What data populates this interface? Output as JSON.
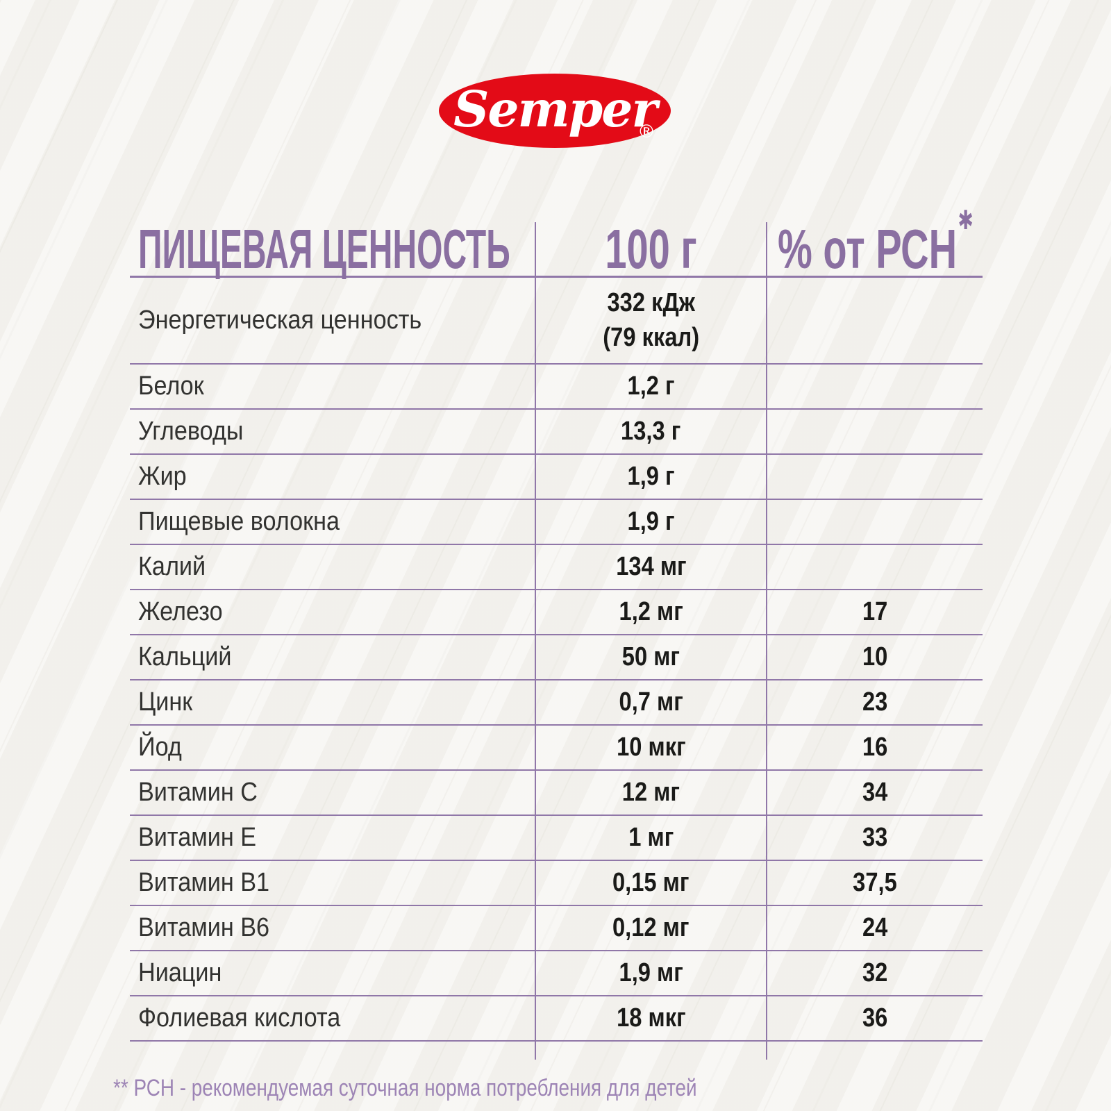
{
  "brand": {
    "logo_text": "Semper",
    "registered_mark": "®",
    "logo_bg_color": "#E30B17",
    "logo_text_color": "#FFFFFF"
  },
  "colors": {
    "accent_purple": "#8A6FA1",
    "grid_line_purple": "#9077A8",
    "footnote_purple": "#9D84B5",
    "value_text": "#1A1A18",
    "background": "#F4F3EF"
  },
  "table": {
    "headers": [
      {
        "label": "ПИЩЕВАЯ ЦЕННОСТЬ"
      },
      {
        "label": "100 г"
      },
      {
        "label": "% от РСН",
        "asterisk": "✱"
      }
    ],
    "rows": [
      {
        "name": "Энергетическая ценность",
        "value": "332 кДж",
        "value2": "(79 ккал)",
        "pct": ""
      },
      {
        "name": "Белок",
        "value": "1,2 г",
        "pct": ""
      },
      {
        "name": "Углеводы",
        "value": "13,3 г",
        "pct": ""
      },
      {
        "name": "Жир",
        "value": "1,9 г",
        "pct": ""
      },
      {
        "name": "Пищевые волокна",
        "value": "1,9 г",
        "pct": ""
      },
      {
        "name": "Калий",
        "value": "134 мг",
        "pct": ""
      },
      {
        "name": "Железо",
        "value": "1,2 мг",
        "pct": "17"
      },
      {
        "name": "Кальций",
        "value": "50 мг",
        "pct": "10"
      },
      {
        "name": "Цинк",
        "value": "0,7 мг",
        "pct": "23"
      },
      {
        "name": "Йод",
        "value": "10 мкг",
        "pct": "16"
      },
      {
        "name": "Витамин C",
        "value": "12 мг",
        "pct": "34"
      },
      {
        "name": "Витамин E",
        "value": "1 мг",
        "pct": "33"
      },
      {
        "name": "Витамин B1",
        "value": "0,15 мг",
        "pct": "37,5"
      },
      {
        "name": "Витамин B6",
        "value": "0,12 мг",
        "pct": "24"
      },
      {
        "name": "Ниацин",
        "value": "1,9 мг",
        "pct": "32"
      },
      {
        "name": "Фолиевая кислота",
        "value": "18 мкг",
        "pct": "36"
      }
    ]
  },
  "footnote": "** РСН - рекомендуемая суточная норма потребления для детей"
}
